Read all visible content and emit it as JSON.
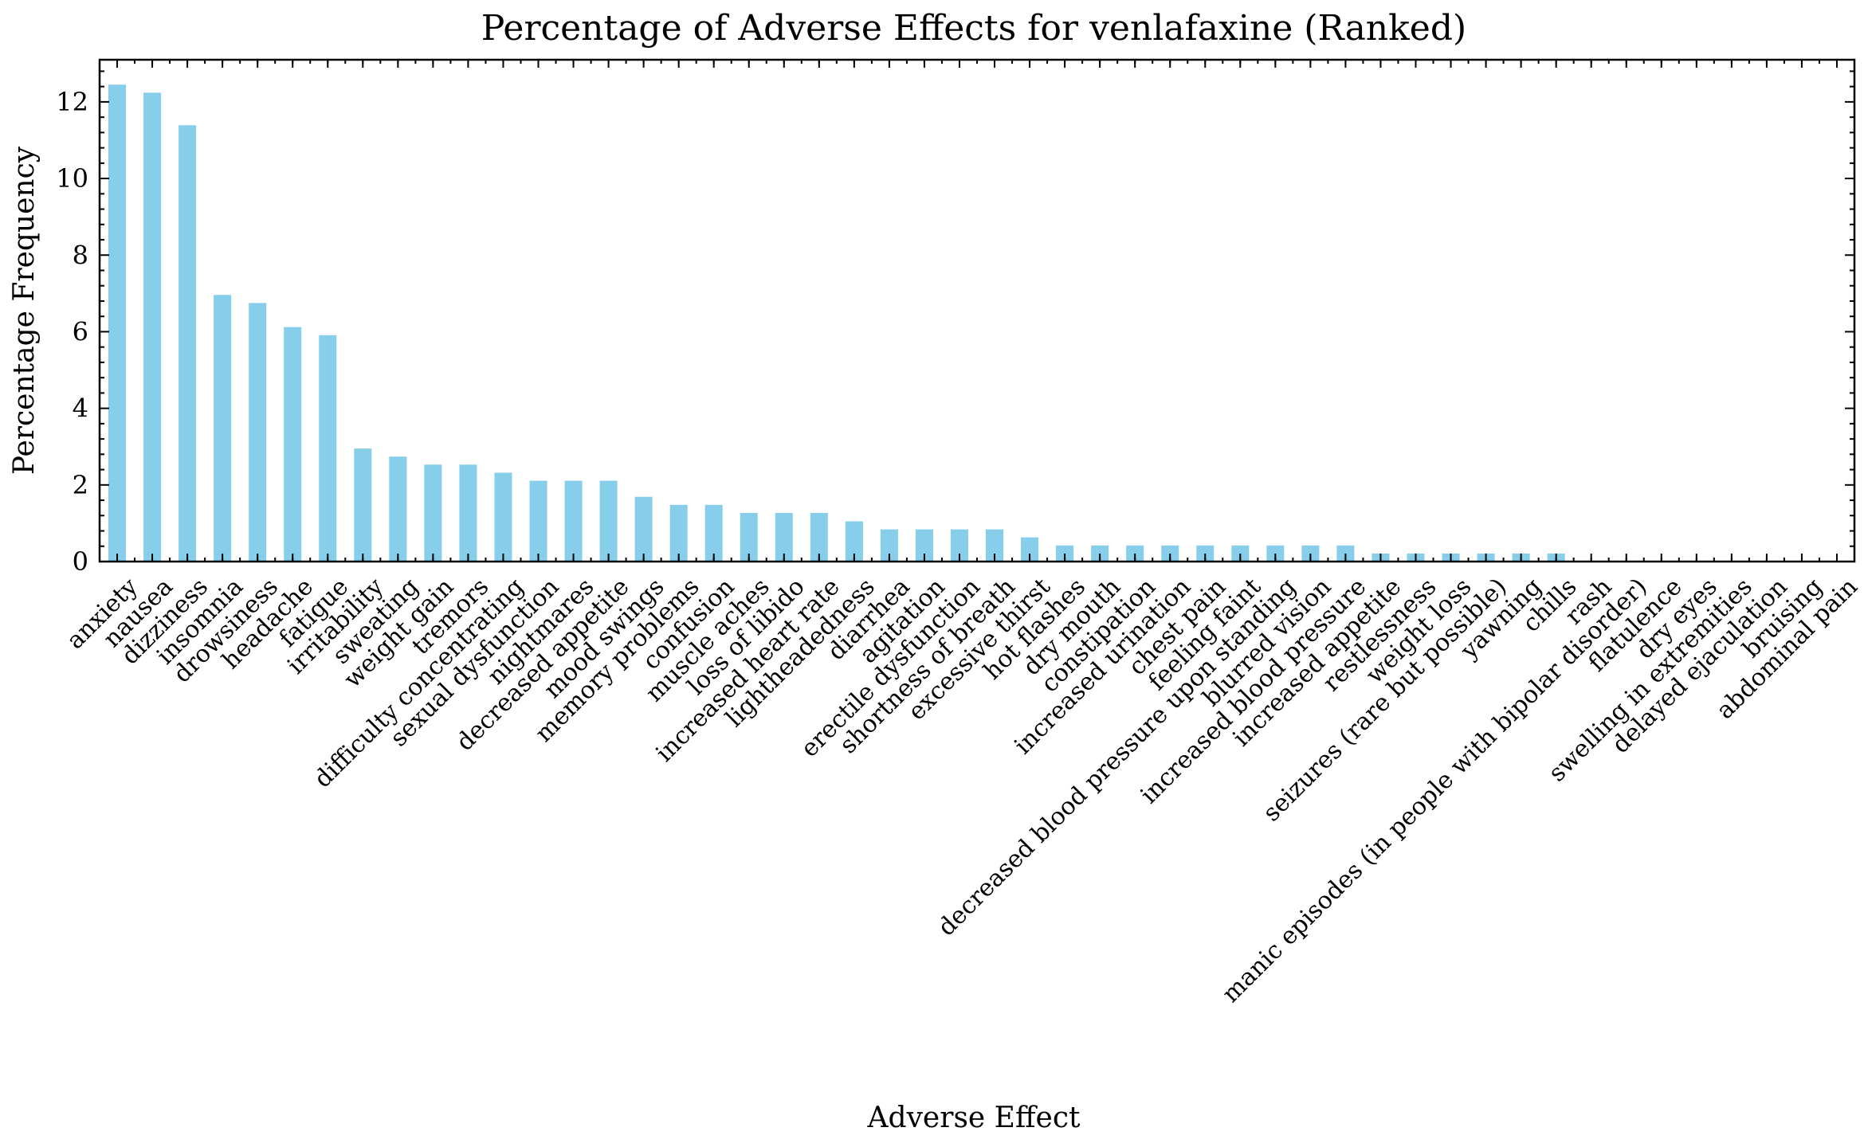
{
  "chart_data": {
    "type": "bar",
    "title": "Percentage of Adverse Effects for venlafaxine (Ranked)",
    "xlabel": "Adverse Effect",
    "ylabel": "Percentage Frequency",
    "ylim": [
      0,
      13.1
    ],
    "yticks": [
      0,
      2,
      4,
      6,
      8,
      10,
      12
    ],
    "grid": false,
    "bar_color": "#87CEEB",
    "categories": [
      "anxiety",
      "nausea",
      "dizziness",
      "insomnia",
      "drowsiness",
      "headache",
      "fatigue",
      "irritability",
      "sweating",
      "weight gain",
      "tremors",
      "difficulty concentrating",
      "sexual dysfunction",
      "nightmares",
      "decreased appetite",
      "mood swings",
      "memory problems",
      "confusion",
      "muscle aches",
      "loss of libido",
      "increased heart rate",
      "lightheadedness",
      "diarrhea",
      "agitation",
      "erectile dysfunction",
      "shortness of breath",
      "excessive thirst",
      "hot flashes",
      "dry mouth",
      "constipation",
      "increased urination",
      "chest pain",
      "feeling faint",
      "decreased blood pressure upon standing",
      "blurred vision",
      "increased blood pressure",
      "increased appetite",
      "restlessness",
      "weight loss",
      "seizures (rare but possible)",
      "yawning",
      "chills",
      "rash",
      "manic episodes (in people with bipolar disorder)",
      "flatulence",
      "dry eyes",
      "swelling in extremities",
      "delayed ejaculation",
      "bruising",
      "abdominal pain"
    ],
    "values": [
      12.45,
      12.24,
      11.39,
      6.96,
      6.75,
      6.12,
      5.91,
      2.95,
      2.74,
      2.53,
      2.53,
      2.32,
      2.11,
      2.11,
      2.11,
      1.69,
      1.48,
      1.48,
      1.27,
      1.27,
      1.27,
      1.05,
      0.84,
      0.84,
      0.84,
      0.84,
      0.63,
      0.42,
      0.42,
      0.42,
      0.42,
      0.42,
      0.42,
      0.42,
      0.42,
      0.42,
      0.21,
      0.21,
      0.21,
      0.21,
      0.21,
      0.21,
      0,
      0,
      0,
      0,
      0,
      0,
      0,
      0
    ]
  }
}
